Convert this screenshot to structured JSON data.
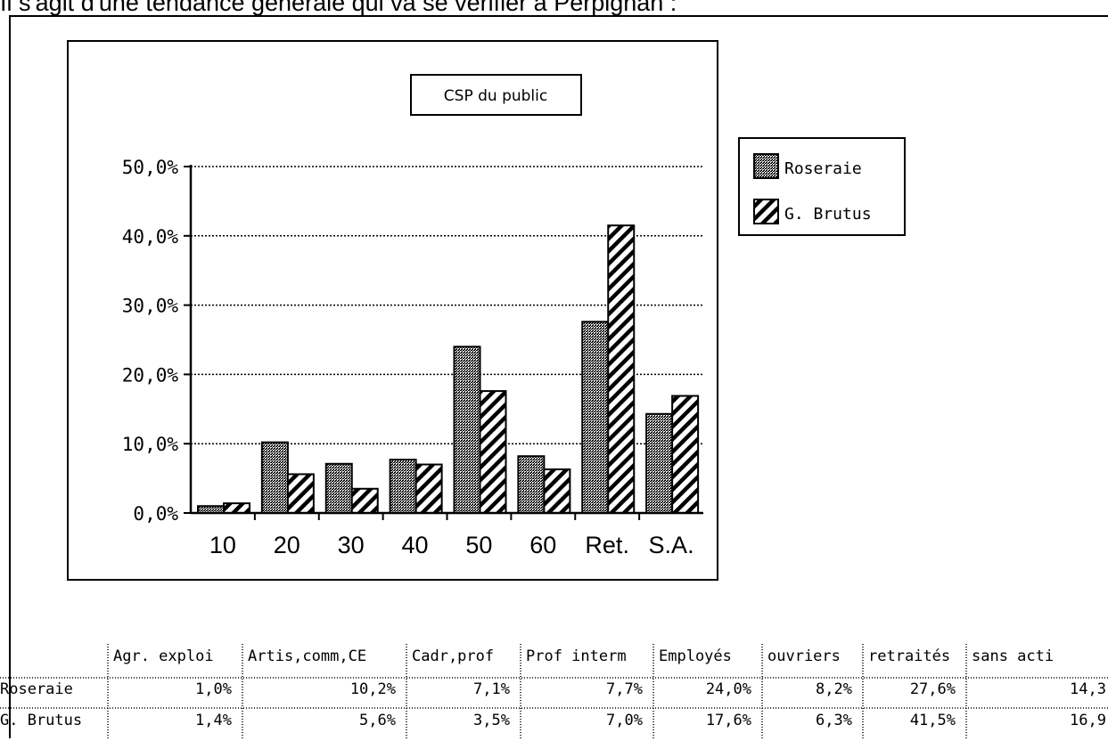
{
  "top_text": "Il s'agit d'une tendance générale qui va se vérifier à Perpignan :",
  "colors": {
    "roseraie_fill": "#9a9a9a",
    "frame": "#000000",
    "grid": "#000000"
  },
  "chart_data": {
    "type": "bar",
    "title": "CSP du public",
    "categories": [
      "10",
      "20",
      "30",
      "40",
      "50",
      "60",
      "Ret.",
      "S.A."
    ],
    "series": [
      {
        "name": "Roseraie",
        "values": [
          1.0,
          10.2,
          7.1,
          7.7,
          24.0,
          8.2,
          27.6,
          14.3
        ],
        "pattern": "stipple"
      },
      {
        "name": "G. Brutus",
        "values": [
          1.4,
          5.6,
          3.5,
          7.0,
          17.6,
          6.3,
          41.5,
          16.9
        ],
        "pattern": "diagonal-hatch"
      }
    ],
    "ylim": [
      0,
      50
    ],
    "yticks": [
      "0,0%",
      "10,0%",
      "20,0%",
      "30,0%",
      "40,0%",
      "50,0%"
    ],
    "grid": "horizontal-dotted",
    "legend_position": "top-right",
    "xlabel": "",
    "ylabel": ""
  },
  "table": {
    "headers": [
      "Agr. exploi",
      "Artis,comm,CE",
      "Cadr,prof",
      "Prof interm",
      "Employés",
      "ouvriers",
      "retraités",
      "sans acti"
    ],
    "rows": [
      {
        "label": "Roseraie",
        "values": [
          "1,0%",
          "10,2%",
          "7,1%",
          "7,7%",
          "24,0%",
          "8,2%",
          "27,6%",
          "14,3"
        ]
      },
      {
        "label": "G. Brutus",
        "values": [
          "1,4%",
          "5,6%",
          "3,5%",
          "7,0%",
          "17,6%",
          "6,3%",
          "41,5%",
          "16,9"
        ]
      }
    ]
  }
}
